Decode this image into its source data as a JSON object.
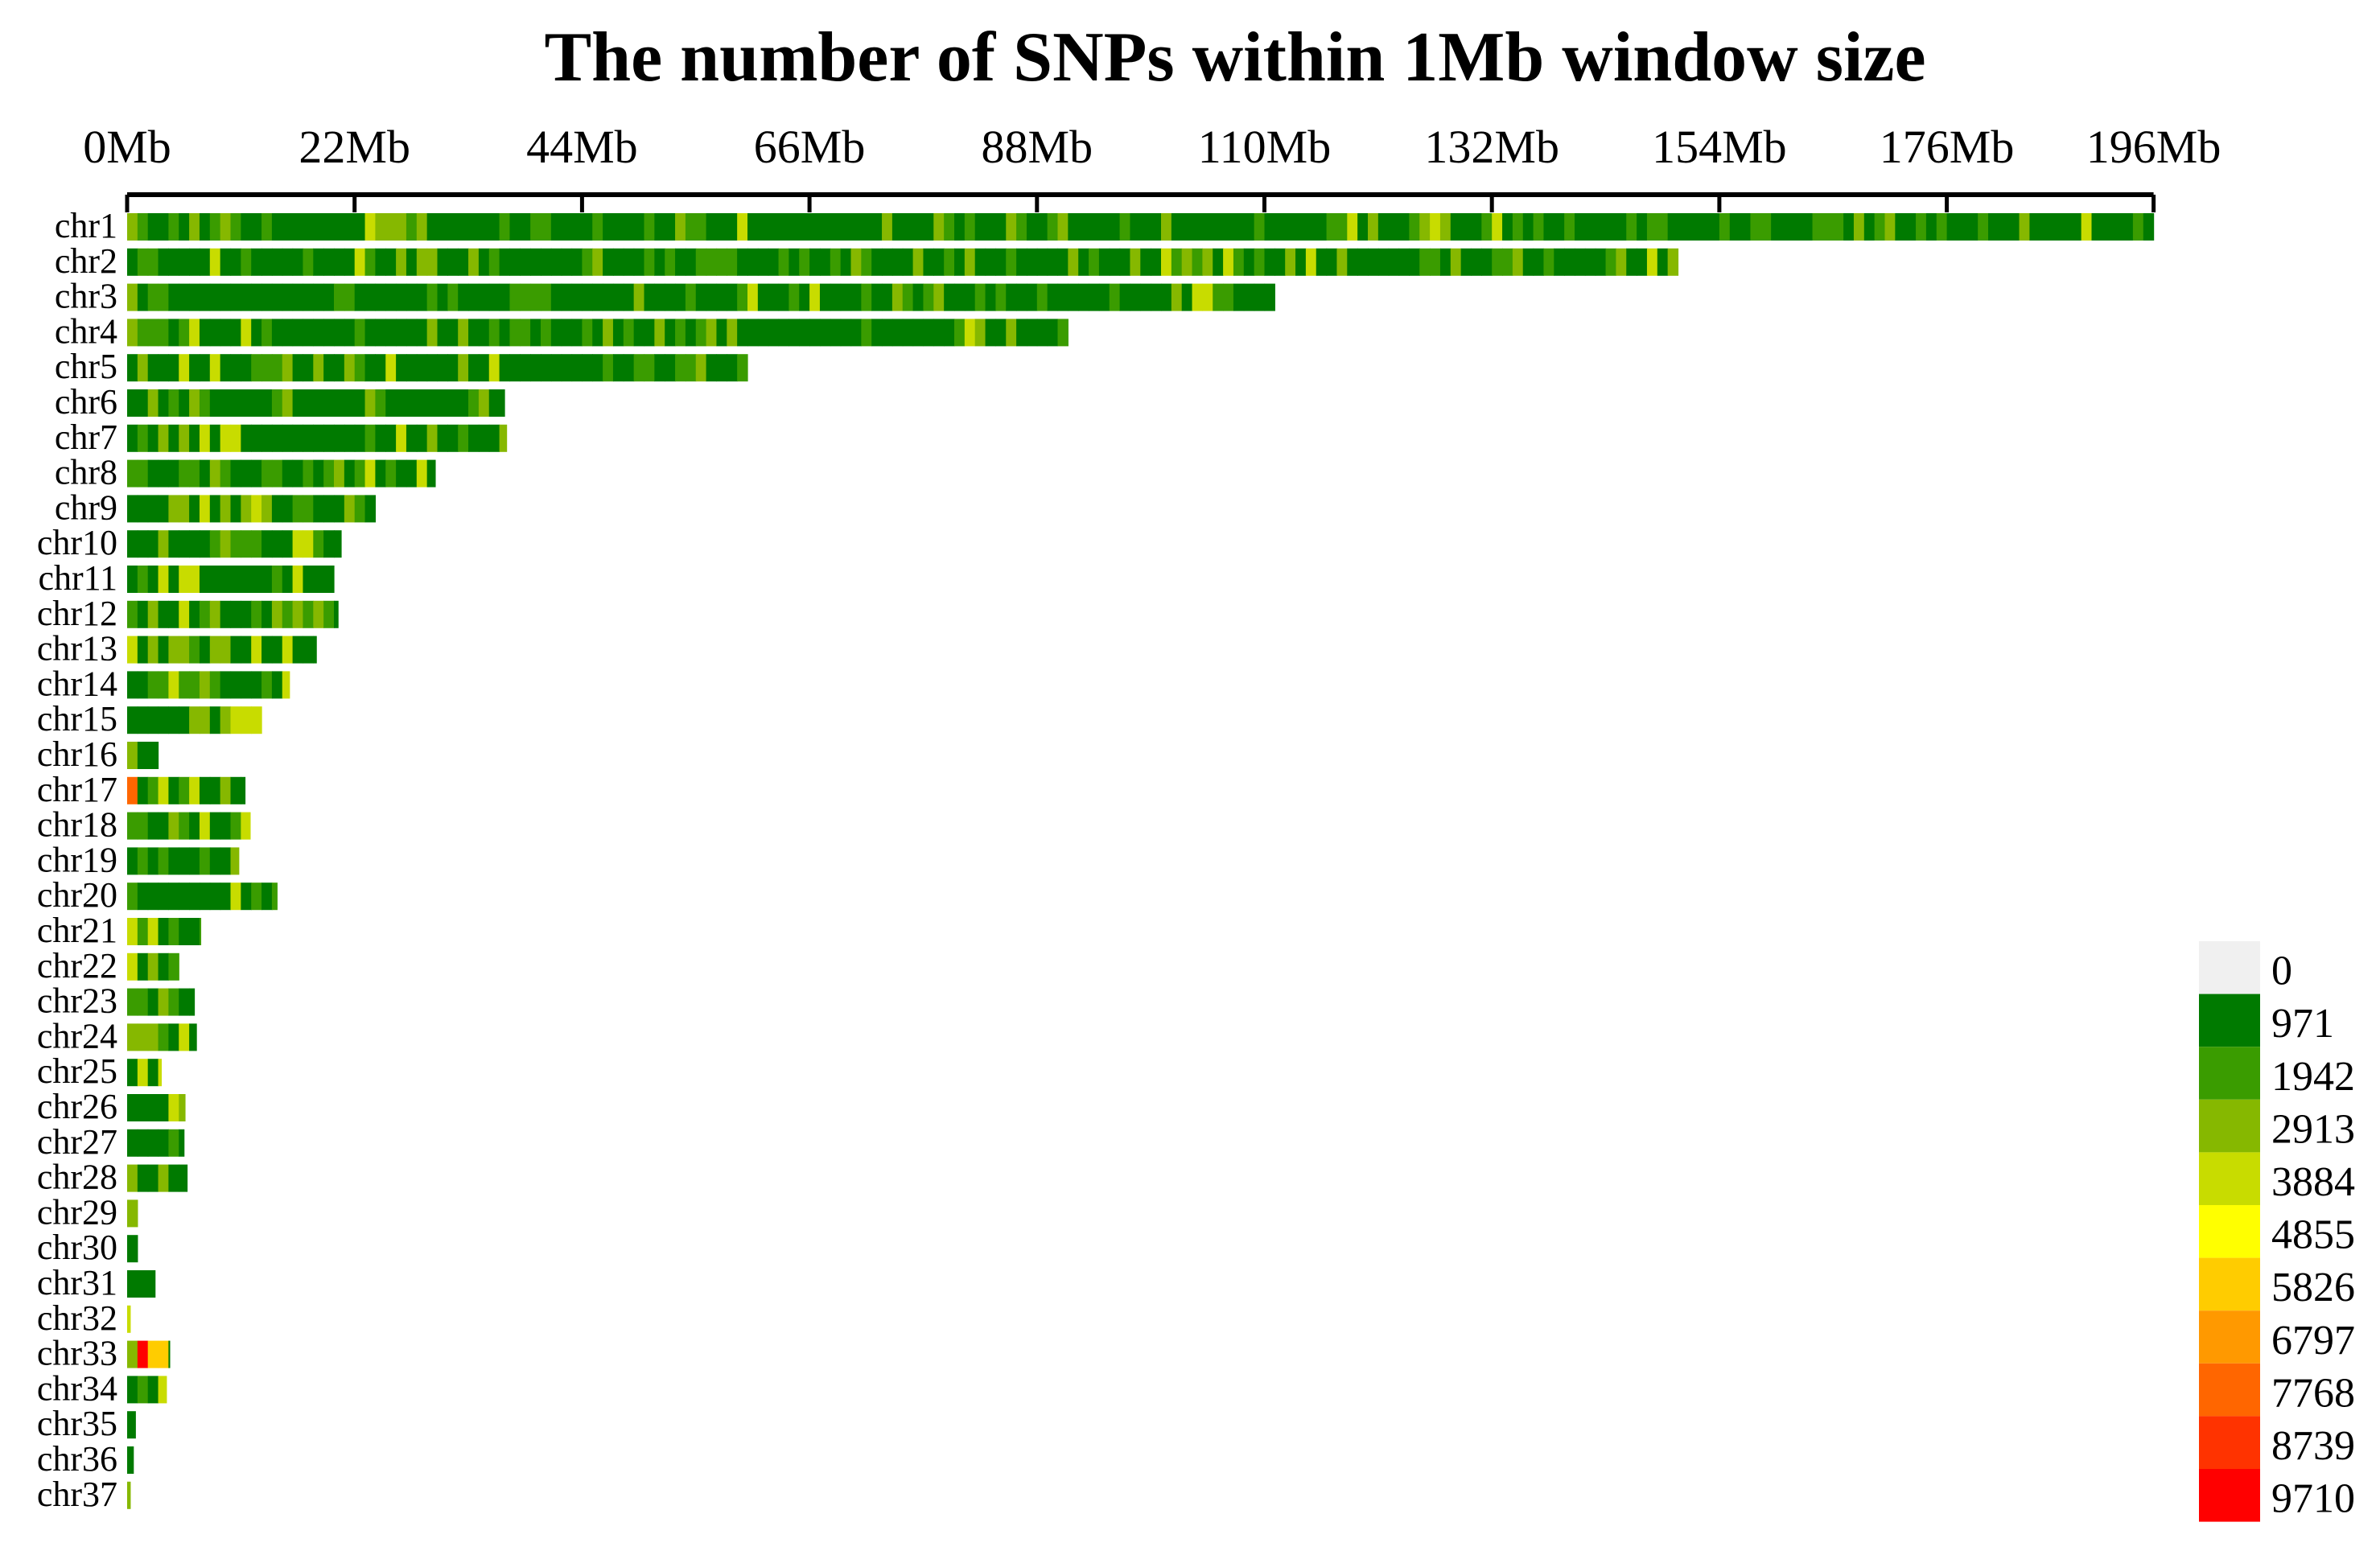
{
  "chart_data": {
    "type": "heatmap",
    "title": "The number of SNPs within 1Mb window size",
    "window_size_mb": 1,
    "x_ticks": [
      "0Mb",
      "22Mb",
      "44Mb",
      "66Mb",
      "88Mb",
      "110Mb",
      "132Mb",
      "154Mb",
      "176Mb",
      "196Mb"
    ],
    "x_tick_values": [
      0,
      22,
      44,
      66,
      88,
      110,
      132,
      154,
      176,
      196
    ],
    "x_range": [
      0,
      196
    ],
    "chromosomes": [
      {
        "name": "chr1",
        "length_mb": 196
      },
      {
        "name": "chr2",
        "length_mb": 150
      },
      {
        "name": "chr3",
        "length_mb": 111
      },
      {
        "name": "chr4",
        "length_mb": 91
      },
      {
        "name": "chr5",
        "length_mb": 60
      },
      {
        "name": "chr6",
        "length_mb": 36.5
      },
      {
        "name": "chr7",
        "length_mb": 36.7
      },
      {
        "name": "chr8",
        "length_mb": 29.8
      },
      {
        "name": "chr9",
        "length_mb": 24
      },
      {
        "name": "chr10",
        "length_mb": 20.7
      },
      {
        "name": "chr11",
        "length_mb": 20
      },
      {
        "name": "chr12",
        "length_mb": 20.4
      },
      {
        "name": "chr13",
        "length_mb": 18.3
      },
      {
        "name": "chr14",
        "length_mb": 15.7
      },
      {
        "name": "chr15",
        "length_mb": 13
      },
      {
        "name": "chr16",
        "length_mb": 3
      },
      {
        "name": "chr17",
        "length_mb": 11.4
      },
      {
        "name": "chr18",
        "length_mb": 11.9
      },
      {
        "name": "chr19",
        "length_mb": 10.8
      },
      {
        "name": "chr20",
        "length_mb": 14.5
      },
      {
        "name": "chr21",
        "length_mb": 7.1
      },
      {
        "name": "chr22",
        "length_mb": 5
      },
      {
        "name": "chr23",
        "length_mb": 6.5
      },
      {
        "name": "chr24",
        "length_mb": 6.7
      },
      {
        "name": "chr25",
        "length_mb": 3.3
      },
      {
        "name": "chr26",
        "length_mb": 5.6
      },
      {
        "name": "chr27",
        "length_mb": 5.5
      },
      {
        "name": "chr28",
        "length_mb": 5.8
      },
      {
        "name": "chr29",
        "length_mb": 1
      },
      {
        "name": "chr30",
        "length_mb": 1
      },
      {
        "name": "chr31",
        "length_mb": 2.7
      },
      {
        "name": "chr32",
        "length_mb": 0.3
      },
      {
        "name": "chr33",
        "length_mb": 4.1
      },
      {
        "name": "chr34",
        "length_mb": 3.8
      },
      {
        "name": "chr35",
        "length_mb": 0.8
      },
      {
        "name": "chr36",
        "length_mb": 0.6
      },
      {
        "name": "chr37",
        "length_mb": 0.3
      }
    ],
    "hotspots": [
      {
        "chromosome": "chr17",
        "start_mb": 0,
        "end_mb": 1,
        "snps": 7768
      },
      {
        "chromosome": "chr33",
        "start_mb": 1.5,
        "end_mb": 2.5,
        "snps": 9710
      },
      {
        "chromosome": "chr33",
        "start_mb": 2.5,
        "end_mb": 3.5,
        "snps": 5826
      }
    ],
    "legend": {
      "position": "bottom-right",
      "bins": [
        {
          "label": "0",
          "color": "#f0f0f0"
        },
        {
          "label": "971",
          "color": "#007a00"
        },
        {
          "label": "1942",
          "color": "#3a9c00"
        },
        {
          "label": "2913",
          "color": "#86b800"
        },
        {
          "label": "3884",
          "color": "#c8dc00"
        },
        {
          "label": "4855",
          "color": "#ffff00"
        },
        {
          "label": "5826",
          "color": "#ffcc00"
        },
        {
          "label": "6797",
          "color": "#ff9900"
        },
        {
          "label": "7768",
          "color": "#ff6600"
        },
        {
          "label": "8739",
          "color": "#ff3300"
        },
        {
          "label": "9710",
          "color": "#ff0000"
        }
      ]
    }
  }
}
